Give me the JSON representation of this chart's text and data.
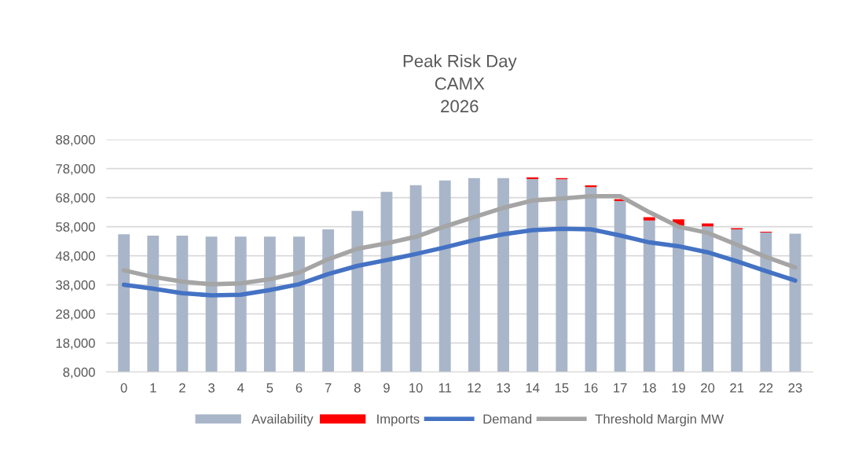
{
  "chart_data": {
    "type": "bar",
    "title": "Peak Risk Day\nCAMX\n2026",
    "categories": [
      "0",
      "1",
      "2",
      "3",
      "4",
      "5",
      "6",
      "7",
      "8",
      "9",
      "10",
      "11",
      "12",
      "13",
      "14",
      "15",
      "16",
      "17",
      "18",
      "19",
      "20",
      "21",
      "22",
      "23"
    ],
    "series": [
      {
        "name": "Availability",
        "color": "#a9b6c9",
        "values": [
          55400,
          54900,
          54900,
          54600,
          54600,
          54600,
          54600,
          57100,
          63400,
          70000,
          72300,
          73900,
          74700,
          74700,
          74400,
          74300,
          71600,
          66800,
          60100,
          58300,
          58100,
          57100,
          56000,
          55600
        ]
      },
      {
        "name": "Imports",
        "color": "#ff0000",
        "base": [
          null,
          null,
          null,
          null,
          null,
          null,
          null,
          null,
          null,
          null,
          null,
          null,
          null,
          null,
          74400,
          74300,
          71600,
          66800,
          60100,
          58300,
          58100,
          57100,
          56000,
          null
        ],
        "values": [
          null,
          null,
          null,
          null,
          null,
          null,
          null,
          null,
          null,
          null,
          null,
          null,
          null,
          null,
          600,
          400,
          600,
          700,
          1200,
          2200,
          1000,
          400,
          300,
          null
        ]
      },
      {
        "name": "Demand",
        "type": "line",
        "color": "#4472c4",
        "values": [
          38000,
          36700,
          35100,
          34400,
          34600,
          36200,
          38200,
          41700,
          44500,
          46500,
          48600,
          50900,
          53400,
          55400,
          56800,
          57300,
          57100,
          55000,
          52600,
          51300,
          49200,
          46100,
          42700,
          39500
        ]
      },
      {
        "name": "Threshold Margin MW",
        "type": "line",
        "color": "#a5a5a5",
        "values": [
          43000,
          40700,
          39100,
          38200,
          38500,
          39900,
          42200,
          46800,
          50400,
          52300,
          54500,
          58100,
          61300,
          64500,
          67000,
          67700,
          68500,
          68500,
          63000,
          58000,
          55900,
          51800,
          47600,
          44000
        ]
      }
    ],
    "ylim": [
      8000,
      88000
    ],
    "yticks": [
      {
        "value": 8000,
        "label": "8,000"
      },
      {
        "value": 18000,
        "label": "18,000"
      },
      {
        "value": 28000,
        "label": "28,000"
      },
      {
        "value": 38000,
        "label": "38,000"
      },
      {
        "value": 48000,
        "label": "48,000"
      },
      {
        "value": 58000,
        "label": "58,000"
      },
      {
        "value": 68000,
        "label": "68,000"
      },
      {
        "value": 78000,
        "label": "78,000"
      },
      {
        "value": 88000,
        "label": "88,000"
      }
    ],
    "grid": "y",
    "legend": "bottom",
    "marker": "none",
    "line_style": "solid"
  }
}
